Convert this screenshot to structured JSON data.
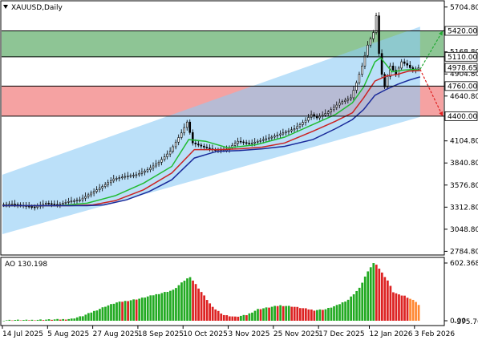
{
  "chart_data": {
    "type": "candlestick",
    "symbol": "XAUUSD,Daily",
    "y_ticks": [
      "5704.80",
      "5168.80",
      "4904.80",
      "4640.80",
      "4104.80",
      "3840.80",
      "3576.80",
      "3312.80",
      "3048.80",
      "2784.80"
    ],
    "y_tick_values": [
      5704.8,
      5168.8,
      4904.8,
      4640.8,
      4104.8,
      3840.8,
      3576.8,
      3312.8,
      3048.8,
      2784.8
    ],
    "ylim": [
      2760,
      5760
    ],
    "x_ticks": [
      "14 Jul 2025",
      "5 Aug 2025",
      "27 Aug 2025",
      "18 Sep 2025",
      "10 Oct 2025",
      "3 Nov 2025",
      "25 Nov 2025",
      "17 Dec 2025",
      "12 Jan 2026",
      "3 Feb 2026"
    ],
    "x_tick_index": [
      0,
      16,
      32,
      48,
      64,
      80,
      96,
      112,
      130,
      146
    ],
    "n_bars": 156,
    "price_levels": [
      {
        "label": "5420.00",
        "value": 5420.0
      },
      {
        "label": "5110.00",
        "value": 5110.0
      },
      {
        "label": "4978.65",
        "value": 4978.65
      },
      {
        "label": "4760.00",
        "value": 4760.0
      },
      {
        "label": "4400.00",
        "value": 4400.0
      }
    ],
    "zones": [
      {
        "from": 5110.0,
        "to": 5420.0,
        "color": "#72b67a"
      },
      {
        "from": 4400.0,
        "to": 4760.0,
        "color": "#f28b8b"
      }
    ],
    "channel": {
      "start": {
        "index": 0,
        "lower": 2990,
        "upper": 3700
      },
      "end": {
        "index": 148,
        "lower": 4390,
        "upper": 5470
      },
      "color": "#8ecbf5"
    },
    "close_series": [
      [
        0,
        3340
      ],
      [
        4,
        3350
      ],
      [
        8,
        3330
      ],
      [
        12,
        3310
      ],
      [
        16,
        3360
      ],
      [
        20,
        3340
      ],
      [
        24,
        3380
      ],
      [
        28,
        3400
      ],
      [
        32,
        3480
      ],
      [
        36,
        3560
      ],
      [
        40,
        3650
      ],
      [
        44,
        3680
      ],
      [
        48,
        3700
      ],
      [
        52,
        3760
      ],
      [
        56,
        3850
      ],
      [
        60,
        3980
      ],
      [
        64,
        4200
      ],
      [
        66,
        4330
      ],
      [
        68,
        4080
      ],
      [
        72,
        4030
      ],
      [
        76,
        3990
      ],
      [
        80,
        4000
      ],
      [
        84,
        4100
      ],
      [
        88,
        4070
      ],
      [
        92,
        4110
      ],
      [
        96,
        4150
      ],
      [
        100,
        4200
      ],
      [
        104,
        4250
      ],
      [
        108,
        4350
      ],
      [
        110,
        4420
      ],
      [
        112,
        4380
      ],
      [
        116,
        4450
      ],
      [
        120,
        4560
      ],
      [
        124,
        4620
      ],
      [
        126,
        4800
      ],
      [
        128,
        5000
      ],
      [
        130,
        5250
      ],
      [
        132,
        5400
      ],
      [
        133,
        5600
      ],
      [
        134,
        5150
      ],
      [
        135,
        4900
      ],
      [
        136,
        4750
      ],
      [
        138,
        5000
      ],
      [
        140,
        4900
      ],
      [
        142,
        5050
      ],
      [
        144,
        5010
      ],
      [
        146,
        4950
      ],
      [
        148,
        4979
      ]
    ],
    "ma_series": [
      {
        "name": "",
        "color": "#22bb33",
        "points": [
          [
            0,
            3330
          ],
          [
            20,
            3330
          ],
          [
            30,
            3360
          ],
          [
            40,
            3450
          ],
          [
            50,
            3600
          ],
          [
            60,
            3800
          ],
          [
            66,
            4120
          ],
          [
            72,
            4100
          ],
          [
            80,
            4020
          ],
          [
            90,
            4060
          ],
          [
            100,
            4150
          ],
          [
            110,
            4300
          ],
          [
            118,
            4420
          ],
          [
            124,
            4560
          ],
          [
            128,
            4750
          ],
          [
            132,
            5050
          ],
          [
            134,
            5100
          ],
          [
            138,
            4930
          ],
          [
            142,
            4950
          ],
          [
            146,
            4960
          ],
          [
            148,
            4950
          ]
        ]
      },
      {
        "name": "",
        "color": "#cc2222",
        "points": [
          [
            0,
            3330
          ],
          [
            24,
            3330
          ],
          [
            32,
            3340
          ],
          [
            40,
            3390
          ],
          [
            50,
            3520
          ],
          [
            60,
            3720
          ],
          [
            68,
            4000
          ],
          [
            76,
            4000
          ],
          [
            84,
            4010
          ],
          [
            92,
            4030
          ],
          [
            100,
            4080
          ],
          [
            110,
            4220
          ],
          [
            118,
            4340
          ],
          [
            124,
            4440
          ],
          [
            128,
            4620
          ],
          [
            132,
            4820
          ],
          [
            136,
            4880
          ],
          [
            140,
            4900
          ],
          [
            144,
            4940
          ],
          [
            148,
            4945
          ]
        ]
      },
      {
        "name": "",
        "color": "#1a2a9a",
        "points": [
          [
            0,
            3330
          ],
          [
            30,
            3330
          ],
          [
            36,
            3340
          ],
          [
            44,
            3400
          ],
          [
            52,
            3500
          ],
          [
            60,
            3640
          ],
          [
            68,
            3900
          ],
          [
            76,
            3980
          ],
          [
            84,
            3990
          ],
          [
            92,
            4010
          ],
          [
            100,
            4040
          ],
          [
            110,
            4120
          ],
          [
            118,
            4250
          ],
          [
            124,
            4360
          ],
          [
            128,
            4480
          ],
          [
            132,
            4650
          ],
          [
            136,
            4720
          ],
          [
            140,
            4780
          ],
          [
            144,
            4830
          ],
          [
            148,
            4870
          ]
        ]
      }
    ],
    "arrows": [
      {
        "from": [
          148,
          4960
        ],
        "to": [
          156,
          5420
        ],
        "color": "#22aa33"
      },
      {
        "from": [
          148,
          4960
        ],
        "to": [
          156,
          4400
        ],
        "color": "#e02020"
      }
    ],
    "ao": {
      "label": "AO 130.198",
      "y_ticks": [
        "602.368",
        "0.00"
      ],
      "y_tick_values": [
        602.368,
        0
      ],
      "extra_tick": "-375.764",
      "values": [
        [
          0,
          5
        ],
        [
          4,
          8
        ],
        [
          8,
          6
        ],
        [
          12,
          10
        ],
        [
          16,
          12
        ],
        [
          20,
          14
        ],
        [
          24,
          20
        ],
        [
          28,
          50
        ],
        [
          32,
          100
        ],
        [
          36,
          150
        ],
        [
          40,
          190
        ],
        [
          44,
          210
        ],
        [
          48,
          230
        ],
        [
          52,
          260
        ],
        [
          56,
          290
        ],
        [
          60,
          320
        ],
        [
          64,
          420
        ],
        [
          66,
          460
        ],
        [
          70,
          300
        ],
        [
          74,
          140
        ],
        [
          78,
          60
        ],
        [
          82,
          40
        ],
        [
          86,
          60
        ],
        [
          90,
          120
        ],
        [
          94,
          140
        ],
        [
          98,
          160
        ],
        [
          102,
          150
        ],
        [
          106,
          130
        ],
        [
          110,
          110
        ],
        [
          114,
          120
        ],
        [
          118,
          160
        ],
        [
          122,
          220
        ],
        [
          126,
          340
        ],
        [
          128,
          460
        ],
        [
          130,
          560
        ],
        [
          131,
          600
        ],
        [
          132,
          590
        ],
        [
          134,
          500
        ],
        [
          136,
          420
        ],
        [
          138,
          300
        ],
        [
          140,
          270
        ],
        [
          142,
          260
        ],
        [
          144,
          230
        ],
        [
          146,
          200
        ],
        [
          148,
          130
        ]
      ],
      "colors": {
        "up": "#22aa22",
        "down": "#dd2222",
        "last": "#ff8833"
      }
    }
  }
}
